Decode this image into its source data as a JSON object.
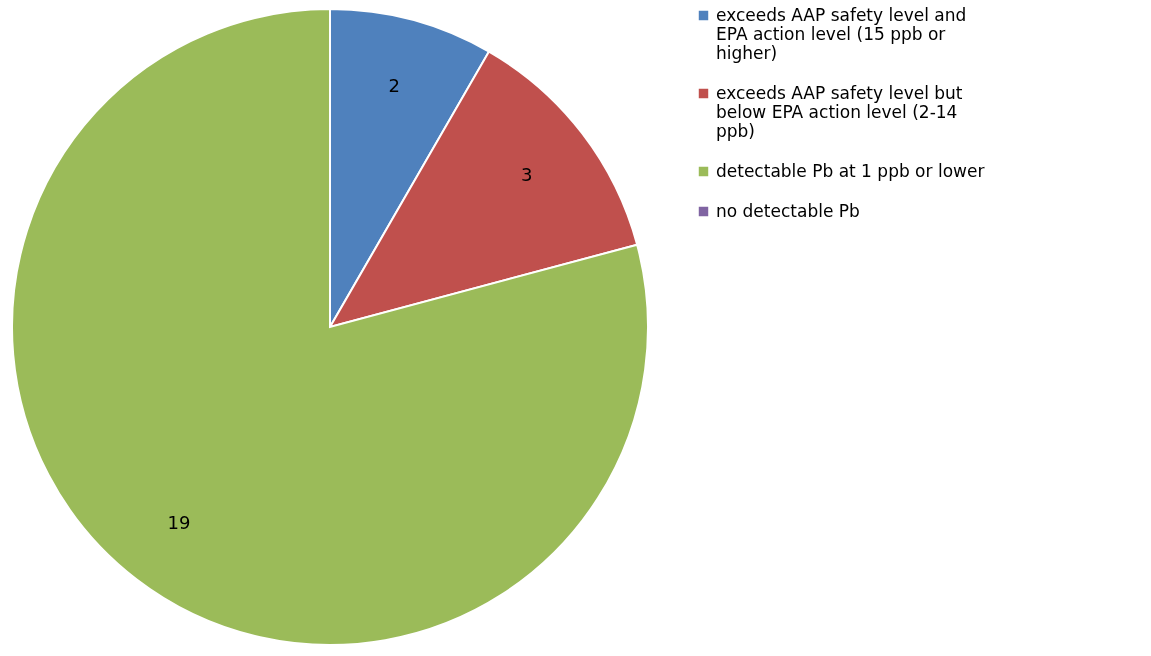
{
  "chart_data": {
    "type": "pie",
    "categories": [
      "exceeds AAP safety level and EPA action level (15 ppb or higher)",
      "exceeds AAP safety level but below EPA action level (2-14 ppb)",
      "detectable Pb at 1 ppb or lower",
      "no detectable Pb"
    ],
    "values": [
      2,
      3,
      19,
      0
    ],
    "colors": [
      "#4f81bd",
      "#c0504d",
      "#9bbb59",
      "#8064a2"
    ],
    "value_labels": [
      "2",
      "3",
      "19",
      null
    ],
    "legend": "right"
  }
}
